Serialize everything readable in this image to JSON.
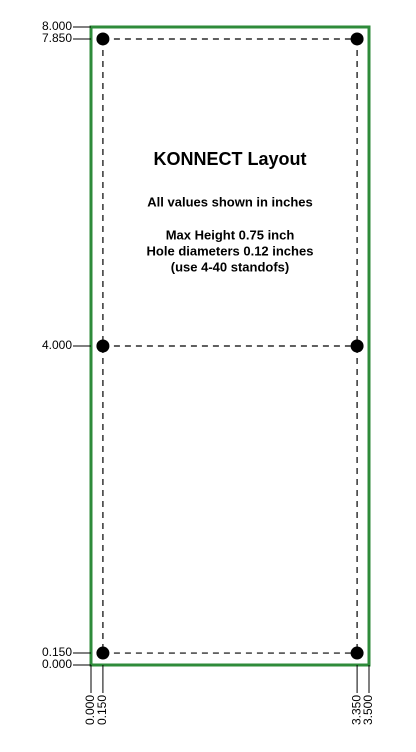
{
  "title": "KONNECT Layout",
  "notes": [
    "All values shown in inches",
    "Max Height 0.75 inch",
    "Hole diameters 0.12 inches",
    "(use 4-40 standofs)"
  ],
  "y_labels": [
    "8.000",
    "7.850",
    "4.000",
    "0.150",
    "0.000"
  ],
  "x_labels": [
    "0.000",
    "0.150",
    "3.350",
    "3.500"
  ]
}
